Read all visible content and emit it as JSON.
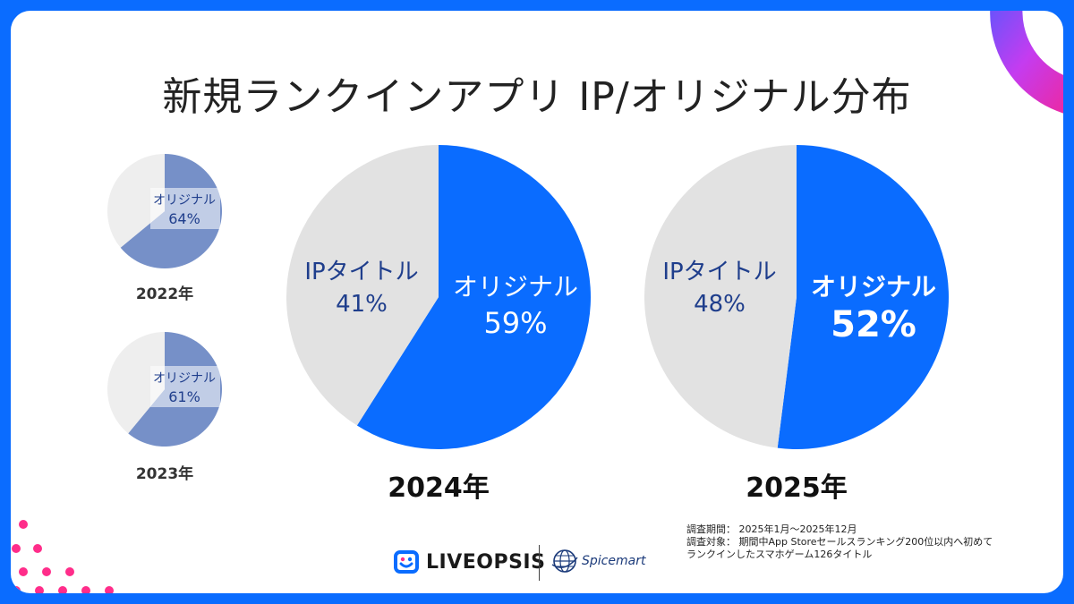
{
  "title": "新規ランクインアプリ IP/オリジナル分布",
  "colors": {
    "frame": "#0a6cff",
    "original_main": "#0a6cff",
    "original_small": "#7690c8",
    "ip_main": "#e2e2e2",
    "ip_small": "#eeeeee",
    "label_dark": "#1f3e8c",
    "accent_pink": "#ff2d8a"
  },
  "chart_data": [
    {
      "type": "pie",
      "year": "2022年",
      "slices": [
        {
          "name": "オリジナル",
          "value": 64,
          "label": "64%"
        },
        {
          "name": "IPタイトル",
          "value": 36
        }
      ]
    },
    {
      "type": "pie",
      "year": "2023年",
      "slices": [
        {
          "name": "オリジナル",
          "value": 61,
          "label": "61%"
        },
        {
          "name": "IPタイトル",
          "value": 39
        }
      ]
    },
    {
      "type": "pie",
      "year": "2024年",
      "slices": [
        {
          "name": "オリジナル",
          "value": 59,
          "label": "59%"
        },
        {
          "name": "IPタイトル",
          "value": 41,
          "label": "41%"
        }
      ]
    },
    {
      "type": "pie",
      "year": "2025年",
      "slices": [
        {
          "name": "オリジナル",
          "value": 52,
          "label": "52%"
        },
        {
          "name": "IPタイトル",
          "value": 48,
          "label": "48%"
        }
      ]
    }
  ],
  "notes": {
    "period_label": "調査期間：",
    "period_value": "2025年1月～2025年12月",
    "target_label": "調査対象：",
    "target_value_1": "期間中App Storeセールスランキング200位以内へ初めて",
    "target_value_2": "ランクインしたスマホゲーム126タイトル"
  },
  "logos": {
    "liveopsis": "LIVEOPSIS",
    "spicemart": "Spicemart"
  }
}
